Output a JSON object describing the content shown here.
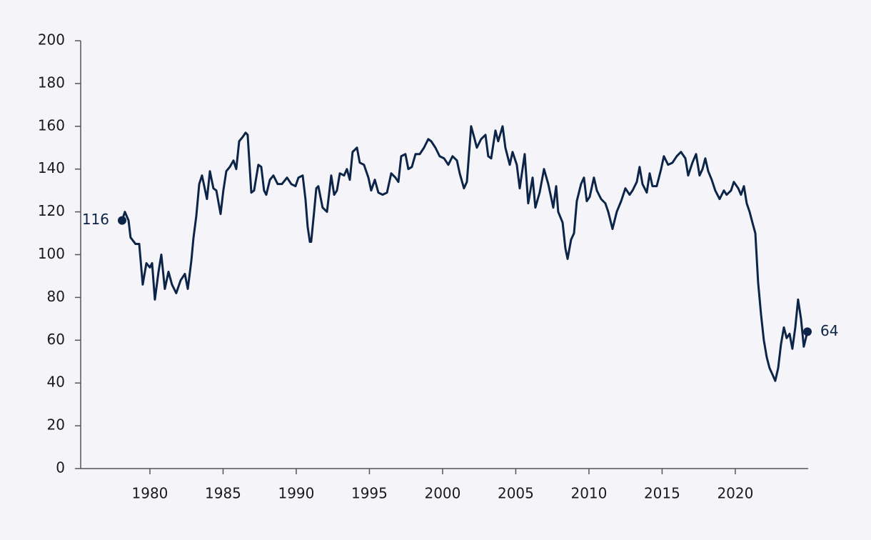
{
  "chart_data": {
    "type": "line",
    "color": "#0c2447",
    "x": [
      1978.1,
      1978.29,
      1978.54,
      1978.68,
      1979.02,
      1979.27,
      1979.51,
      1979.76,
      1980.0,
      1980.15,
      1980.34,
      1980.59,
      1980.78,
      1981.02,
      1981.27,
      1981.51,
      1981.8,
      1982.1,
      1982.39,
      1982.59,
      1982.83,
      1982.98,
      1983.17,
      1983.37,
      1983.56,
      1983.9,
      1984.1,
      1984.34,
      1984.54,
      1984.83,
      1985.02,
      1985.22,
      1985.46,
      1985.71,
      1985.9,
      1986.1,
      1986.34,
      1986.54,
      1986.68,
      1986.93,
      1987.12,
      1987.41,
      1987.61,
      1987.8,
      1987.95,
      1988.2,
      1988.44,
      1988.73,
      1989.02,
      1989.37,
      1989.66,
      1989.95,
      1990.15,
      1990.44,
      1990.63,
      1990.78,
      1990.93,
      1991.02,
      1991.22,
      1991.37,
      1991.51,
      1991.8,
      1992.1,
      1992.39,
      1992.59,
      1992.78,
      1992.98,
      1993.27,
      1993.46,
      1993.66,
      1993.85,
      1994.15,
      1994.34,
      1994.63,
      1994.93,
      1995.12,
      1995.37,
      1995.61,
      1995.9,
      1996.2,
      1996.49,
      1996.78,
      1996.98,
      1997.17,
      1997.46,
      1997.66,
      1997.9,
      1998.15,
      1998.44,
      1998.73,
      1999.02,
      1999.22,
      1999.51,
      1999.8,
      2000.1,
      2000.39,
      2000.68,
      2000.98,
      2001.17,
      2001.46,
      2001.66,
      2001.95,
      2002.15,
      2002.34,
      2002.63,
      2002.93,
      2003.12,
      2003.32,
      2003.61,
      2003.8,
      2004.1,
      2004.29,
      2004.59,
      2004.78,
      2005.07,
      2005.27,
      2005.61,
      2005.85,
      2006.15,
      2006.34,
      2006.63,
      2006.93,
      2007.22,
      2007.41,
      2007.56,
      2007.76,
      2007.9,
      2008.2,
      2008.39,
      2008.54,
      2008.78,
      2008.98,
      2009.17,
      2009.46,
      2009.66,
      2009.85,
      2010.05,
      2010.34,
      2010.54,
      2010.83,
      2011.12,
      2011.32,
      2011.61,
      2011.9,
      2012.2,
      2012.49,
      2012.78,
      2012.98,
      2013.27,
      2013.46,
      2013.66,
      2013.95,
      2014.15,
      2014.34,
      2014.63,
      2014.93,
      2015.12,
      2015.41,
      2015.71,
      2016.0,
      2016.29,
      2016.59,
      2016.78,
      2017.07,
      2017.32,
      2017.56,
      2017.76,
      2017.95,
      2018.15,
      2018.39,
      2018.63,
      2018.93,
      2019.22,
      2019.41,
      2019.71,
      2019.9,
      2020.2,
      2020.39,
      2020.59,
      2020.78,
      2020.98,
      2021.17,
      2021.37,
      2021.56,
      2021.76,
      2021.95,
      2022.15,
      2022.34,
      2022.54,
      2022.73,
      2022.93,
      2023.12,
      2023.32,
      2023.51,
      2023.71,
      2023.9,
      2024.1,
      2024.29,
      2024.49,
      2024.68,
      2024.93
    ],
    "values": [
      116,
      120,
      116,
      108,
      105,
      105,
      86,
      96,
      94,
      96,
      79,
      92,
      100,
      84,
      92,
      86,
      82,
      88,
      91,
      84,
      97,
      108,
      118,
      133,
      137,
      126,
      139,
      131,
      130,
      119,
      130,
      139,
      141,
      144,
      140,
      153,
      155,
      157,
      156,
      129,
      130,
      142,
      141,
      130,
      128,
      135,
      137,
      133,
      133,
      136,
      133,
      132,
      136,
      137,
      126,
      113,
      106,
      106,
      120,
      131,
      132,
      122,
      120,
      137,
      128,
      130,
      138,
      137,
      140,
      135,
      148,
      150,
      143,
      142,
      136,
      130,
      135,
      129,
      128,
      129,
      138,
      136,
      134,
      146,
      147,
      140,
      141,
      147,
      147,
      150,
      154,
      153,
      150,
      146,
      145,
      142,
      146,
      144,
      138,
      131,
      134,
      160,
      155,
      150,
      154,
      156,
      146,
      145,
      158,
      153,
      160,
      150,
      142,
      148,
      142,
      131,
      147,
      124,
      136,
      122,
      129,
      140,
      133,
      127,
      122,
      132,
      120,
      115,
      103,
      98,
      107,
      110,
      125,
      133,
      136,
      125,
      127,
      136,
      130,
      126,
      124,
      120,
      112,
      120,
      125,
      131,
      128,
      130,
      134,
      141,
      133,
      129,
      138,
      132,
      132,
      140,
      146,
      142,
      143,
      146,
      148,
      145,
      137,
      143,
      147,
      137,
      140,
      145,
      139,
      135,
      130,
      126,
      130,
      128,
      130,
      134,
      131,
      128,
      132,
      124,
      120,
      115,
      110,
      87,
      72,
      60,
      52,
      47,
      44,
      41,
      47,
      58,
      66,
      61,
      63,
      56,
      66,
      79,
      70,
      57,
      64
    ],
    "xlim": [
      1975.27,
      2024.98
    ],
    "xticks": [
      1980,
      1985,
      1990,
      1995,
      2000,
      2005,
      2010,
      2015,
      2020
    ],
    "ylim": [
      0,
      200
    ],
    "yticks": [
      0,
      20,
      40,
      60,
      80,
      100,
      120,
      140,
      160,
      180,
      200
    ],
    "grid": false
  }
}
